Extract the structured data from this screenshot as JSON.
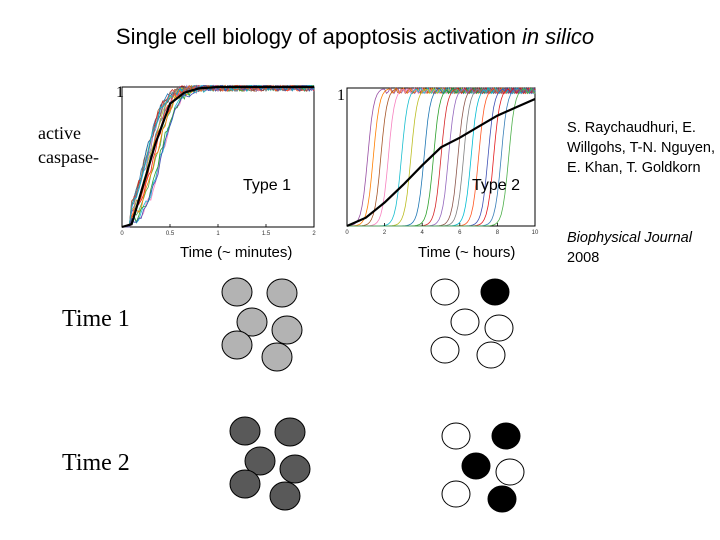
{
  "slide": {
    "title_main": "Single cell biology of apoptosis activation ",
    "title_italic": "in silico",
    "y_axis_label_line1": "active",
    "y_axis_label_line2": "caspase-",
    "y_max_left": "1",
    "y_max_right": "1",
    "left_panel": {
      "type_label": "Type 1",
      "time_label": "Time (~ minutes)",
      "x_ticks": [
        "0",
        "0.5",
        "1",
        "1.5",
        "2"
      ]
    },
    "right_panel": {
      "type_label": "Type 2",
      "time_label": "Time (~ hours)",
      "x_ticks": [
        "0",
        "2",
        "4",
        "6",
        "8",
        "10"
      ]
    },
    "citation_authors": "S. Raychaudhuri, E. Willgohs, T-N. Nguyen, E. Khan, T. Goldkorn",
    "journal_name": "Biophysical Journal",
    "journal_year": "2008",
    "row1_label": "Time 1",
    "row2_label": "Time 2",
    "colors": {
      "type1_time1_fill": "#b3b3b3",
      "type1_time2_fill": "#595959",
      "cell_white": "#ffffff",
      "cell_black": "#000000",
      "mean_curve": "#000000"
    }
  },
  "chart_data": [
    {
      "type": "line",
      "title": "Type 1",
      "xlabel": "Time (~ minutes)",
      "ylabel": "active caspase-",
      "xlim": [
        0,
        2
      ],
      "ylim": [
        0,
        1
      ],
      "x_ticks": [
        0,
        0.5,
        1,
        1.5,
        2
      ],
      "series": [
        {
          "x": [
            0,
            0.1,
            0.2,
            0.35,
            0.5,
            0.65,
            0.8,
            1.0,
            1.5,
            2.0
          ],
          "values": [
            0,
            0.02,
            0.25,
            0.6,
            0.88,
            0.96,
            0.99,
            1.0,
            1.0,
            1.0
          ]
        }
      ],
      "grid": false
    },
    {
      "type": "line",
      "title": "Type 2",
      "xlabel": "Time (~ hours)",
      "ylabel": "active caspase-",
      "xlim": [
        0,
        10
      ],
      "ylim": [
        0,
        1
      ],
      "x_ticks": [
        0,
        2,
        4,
        6,
        8,
        10
      ],
      "series": [
        {
          "x": [
            0,
            1,
            2,
            3,
            4,
            5,
            6,
            7,
            8,
            9,
            10
          ],
          "values": [
            0,
            0.06,
            0.17,
            0.3,
            0.44,
            0.57,
            0.64,
            0.72,
            0.8,
            0.86,
            0.92
          ]
        }
      ],
      "grid": false
    }
  ],
  "cell_diagrams": {
    "type1_time1": [
      "#b3b3b3",
      "#b3b3b3",
      "#b3b3b3",
      "#b3b3b3",
      "#b3b3b3",
      "#b3b3b3"
    ],
    "type1_time2": [
      "#595959",
      "#595959",
      "#595959",
      "#595959",
      "#595959",
      "#595959"
    ],
    "type2_time1": [
      "#ffffff",
      "#000000",
      "#ffffff",
      "#ffffff",
      "#ffffff",
      "#ffffff"
    ],
    "type2_time2": [
      "#ffffff",
      "#000000",
      "#000000",
      "#ffffff",
      "#ffffff",
      "#000000"
    ]
  }
}
